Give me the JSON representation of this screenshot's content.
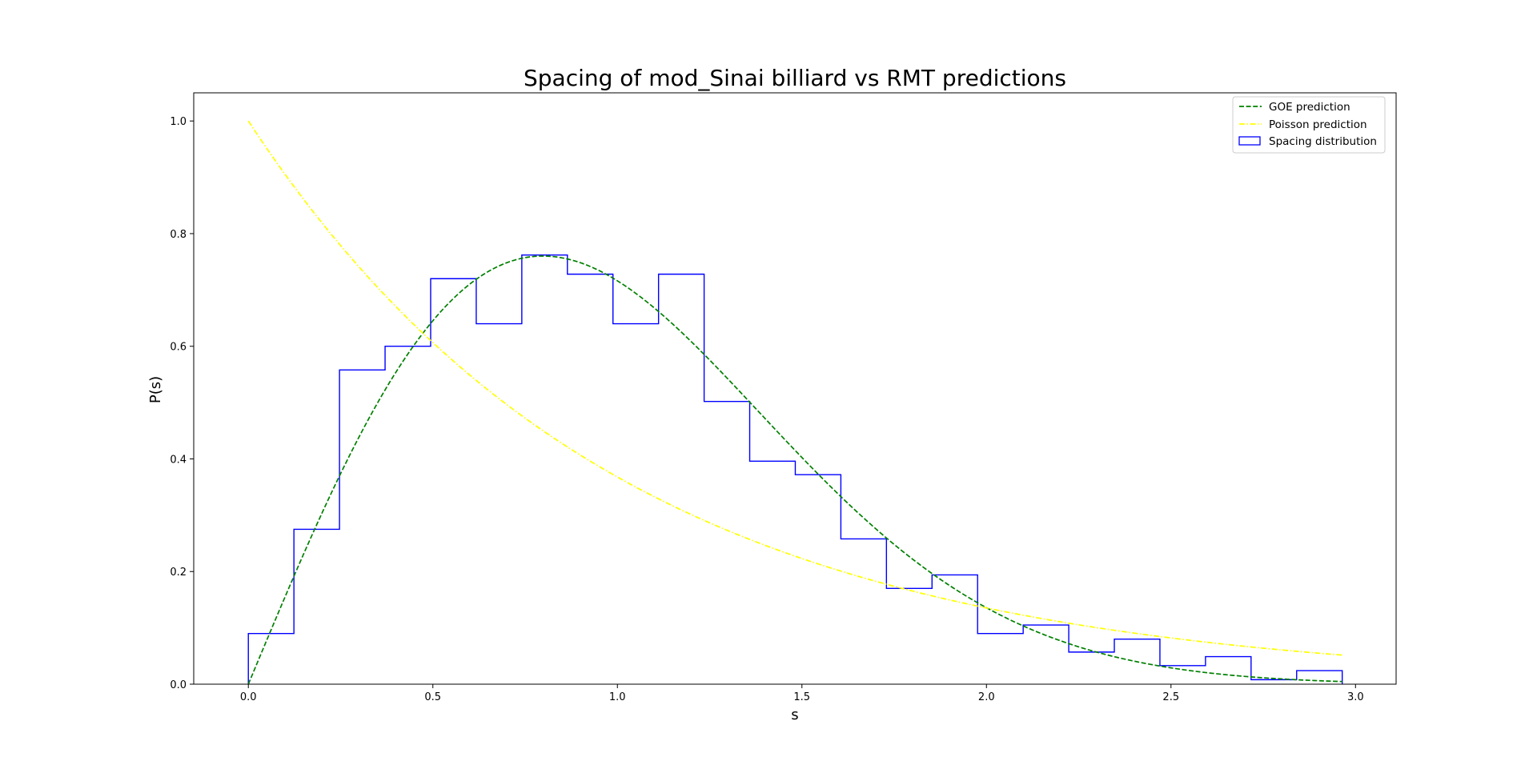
{
  "chart_data": {
    "type": "histogram",
    "title": "Spacing of mod_Sinai billiard vs RMT predictions",
    "xlabel": "s",
    "ylabel": "P(s)",
    "xlim": [
      -0.148,
      3.11
    ],
    "ylim": [
      0.0,
      1.05
    ],
    "xticks": [
      0.0,
      0.5,
      1.0,
      1.5,
      2.0,
      2.5,
      3.0
    ],
    "xtick_labels": [
      "0.0",
      "0.5",
      "1.0",
      "1.5",
      "2.0",
      "2.5",
      "3.0"
    ],
    "yticks": [
      0.0,
      0.2,
      0.4,
      0.6,
      0.8,
      1.0
    ],
    "ytick_labels": [
      "0.0",
      "0.2",
      "0.4",
      "0.6",
      "0.8",
      "1.0"
    ],
    "grid": false,
    "legend": "top-right",
    "histogram": {
      "name": "Spacing distribution",
      "color": "#0000ff",
      "bin_edges": [
        0.0,
        0.1235,
        0.247,
        0.3705,
        0.494,
        0.6175,
        0.741,
        0.8645,
        0.988,
        1.1115,
        1.235,
        1.3585,
        1.482,
        1.6055,
        1.729,
        1.8525,
        1.976,
        2.0995,
        2.223,
        2.3465,
        2.47,
        2.5935,
        2.717,
        2.8405,
        2.964
      ],
      "values": [
        0.09,
        0.275,
        0.558,
        0.6,
        0.72,
        0.64,
        0.762,
        0.728,
        0.64,
        0.728,
        0.502,
        0.396,
        0.372,
        0.258,
        0.17,
        0.194,
        0.09,
        0.105,
        0.057,
        0.08,
        0.033,
        0.049,
        0.008,
        0.024
      ]
    },
    "series": [
      {
        "name": "GOE prediction",
        "color": "#008000",
        "style": "dashed",
        "function": "(pi/2) * s * exp(-pi*s^2/4)",
        "x_range": [
          0.0,
          2.964
        ]
      },
      {
        "name": "Poisson prediction",
        "color": "#ffff00",
        "style": "dashdot",
        "function": "exp(-s)",
        "x_range": [
          0.0,
          2.964
        ]
      }
    ]
  }
}
